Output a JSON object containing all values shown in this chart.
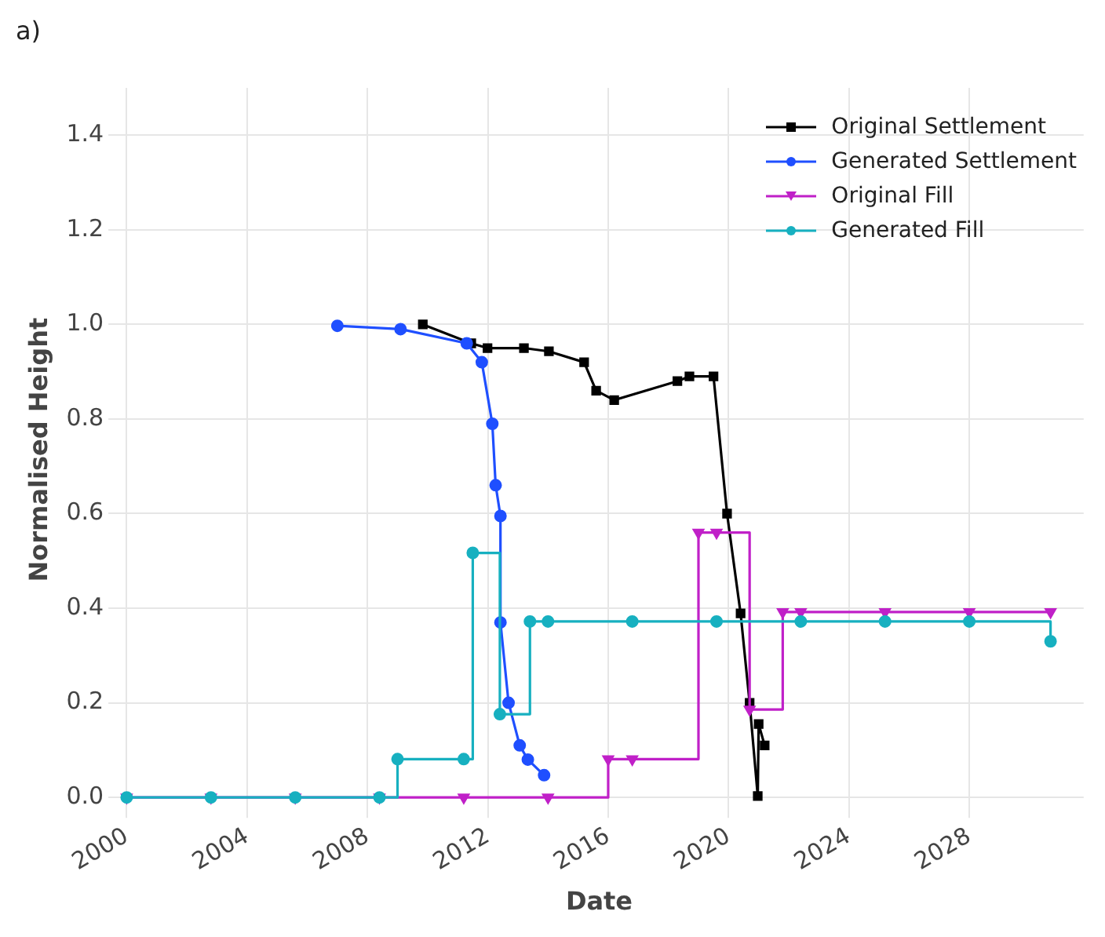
{
  "chart_data": {
    "type": "line",
    "title": "a)",
    "xlabel": "Date",
    "ylabel": "Normalised Height",
    "xlim": [
      1999.6,
      2031.8
    ],
    "xticks": [
      2000,
      2004,
      2008,
      2012,
      2016,
      2020,
      2024,
      2028
    ],
    "ylim": [
      -0.03,
      1.5
    ],
    "yticks": [
      {
        "value": 0,
        "label": "0.0"
      },
      0.2,
      0.4,
      0.6,
      0.8,
      {
        "value": 1,
        "label": "1.0"
      },
      1.2,
      1.4
    ],
    "grid": true,
    "legend": "top right",
    "series": [
      {
        "name": "Original Settlement",
        "color": "#000000",
        "marker": "square",
        "x": [
          2009.84,
          2011.45,
          2011.99,
          2013.2,
          2014.03,
          2015.2,
          2015.6,
          2016.2,
          2018.3,
          2018.7,
          2019.5,
          2019.95,
          2020.4,
          2020.7,
          2020.97,
          2021.0,
          2021.2
        ],
        "values": [
          1.0,
          0.96,
          0.95,
          0.95,
          0.943,
          0.92,
          0.86,
          0.84,
          0.88,
          0.89,
          0.89,
          0.6,
          0.389,
          0.2,
          0.003,
          0.155,
          0.11
        ]
      },
      {
        "name": "Generated Settlement",
        "color": "#1f4fff",
        "marker": "circle",
        "x": [
          2007.0,
          2009.1,
          2011.3,
          2011.8,
          2012.15,
          2012.26,
          2012.42,
          2012.42,
          2012.69,
          2013.06,
          2013.33,
          2013.87
        ],
        "values": [
          0.997,
          0.99,
          0.96,
          0.92,
          0.79,
          0.66,
          0.595,
          0.37,
          0.2,
          0.11,
          0.08,
          0.047
        ]
      },
      {
        "name": "Original Fill",
        "color": "#c020c8",
        "marker": "triangle",
        "type": "step",
        "x": [
          2000,
          2002.8,
          2005.6,
          2008.4,
          2011.2,
          2014.0,
          2016.0,
          2016.8,
          2019.0,
          2019.6,
          2020.7,
          2021.8,
          2022.4,
          2025.2,
          2028.0,
          2030.7
        ],
        "values": [
          0,
          0,
          0,
          0,
          0,
          0,
          0.081,
          0.081,
          0.56,
          0.56,
          0.186,
          0.392,
          0.392,
          0.392,
          0.392,
          0.392
        ]
      },
      {
        "name": "Generated Fill",
        "color": "#17b0c0",
        "marker": "circle",
        "type": "step",
        "x": [
          2000,
          2002.8,
          2005.6,
          2008.4,
          2009.0,
          2011.2,
          2011.5,
          2012.4,
          2013.4,
          2014.0,
          2016.8,
          2019.6,
          2022.4,
          2025.2,
          2028.0,
          2030.7
        ],
        "values": [
          0,
          0,
          0,
          0,
          0.081,
          0.081,
          0.517,
          0.176,
          0.372,
          0.372,
          0.372,
          0.372,
          0.372,
          0.372,
          0.372,
          0.33
        ]
      }
    ]
  }
}
